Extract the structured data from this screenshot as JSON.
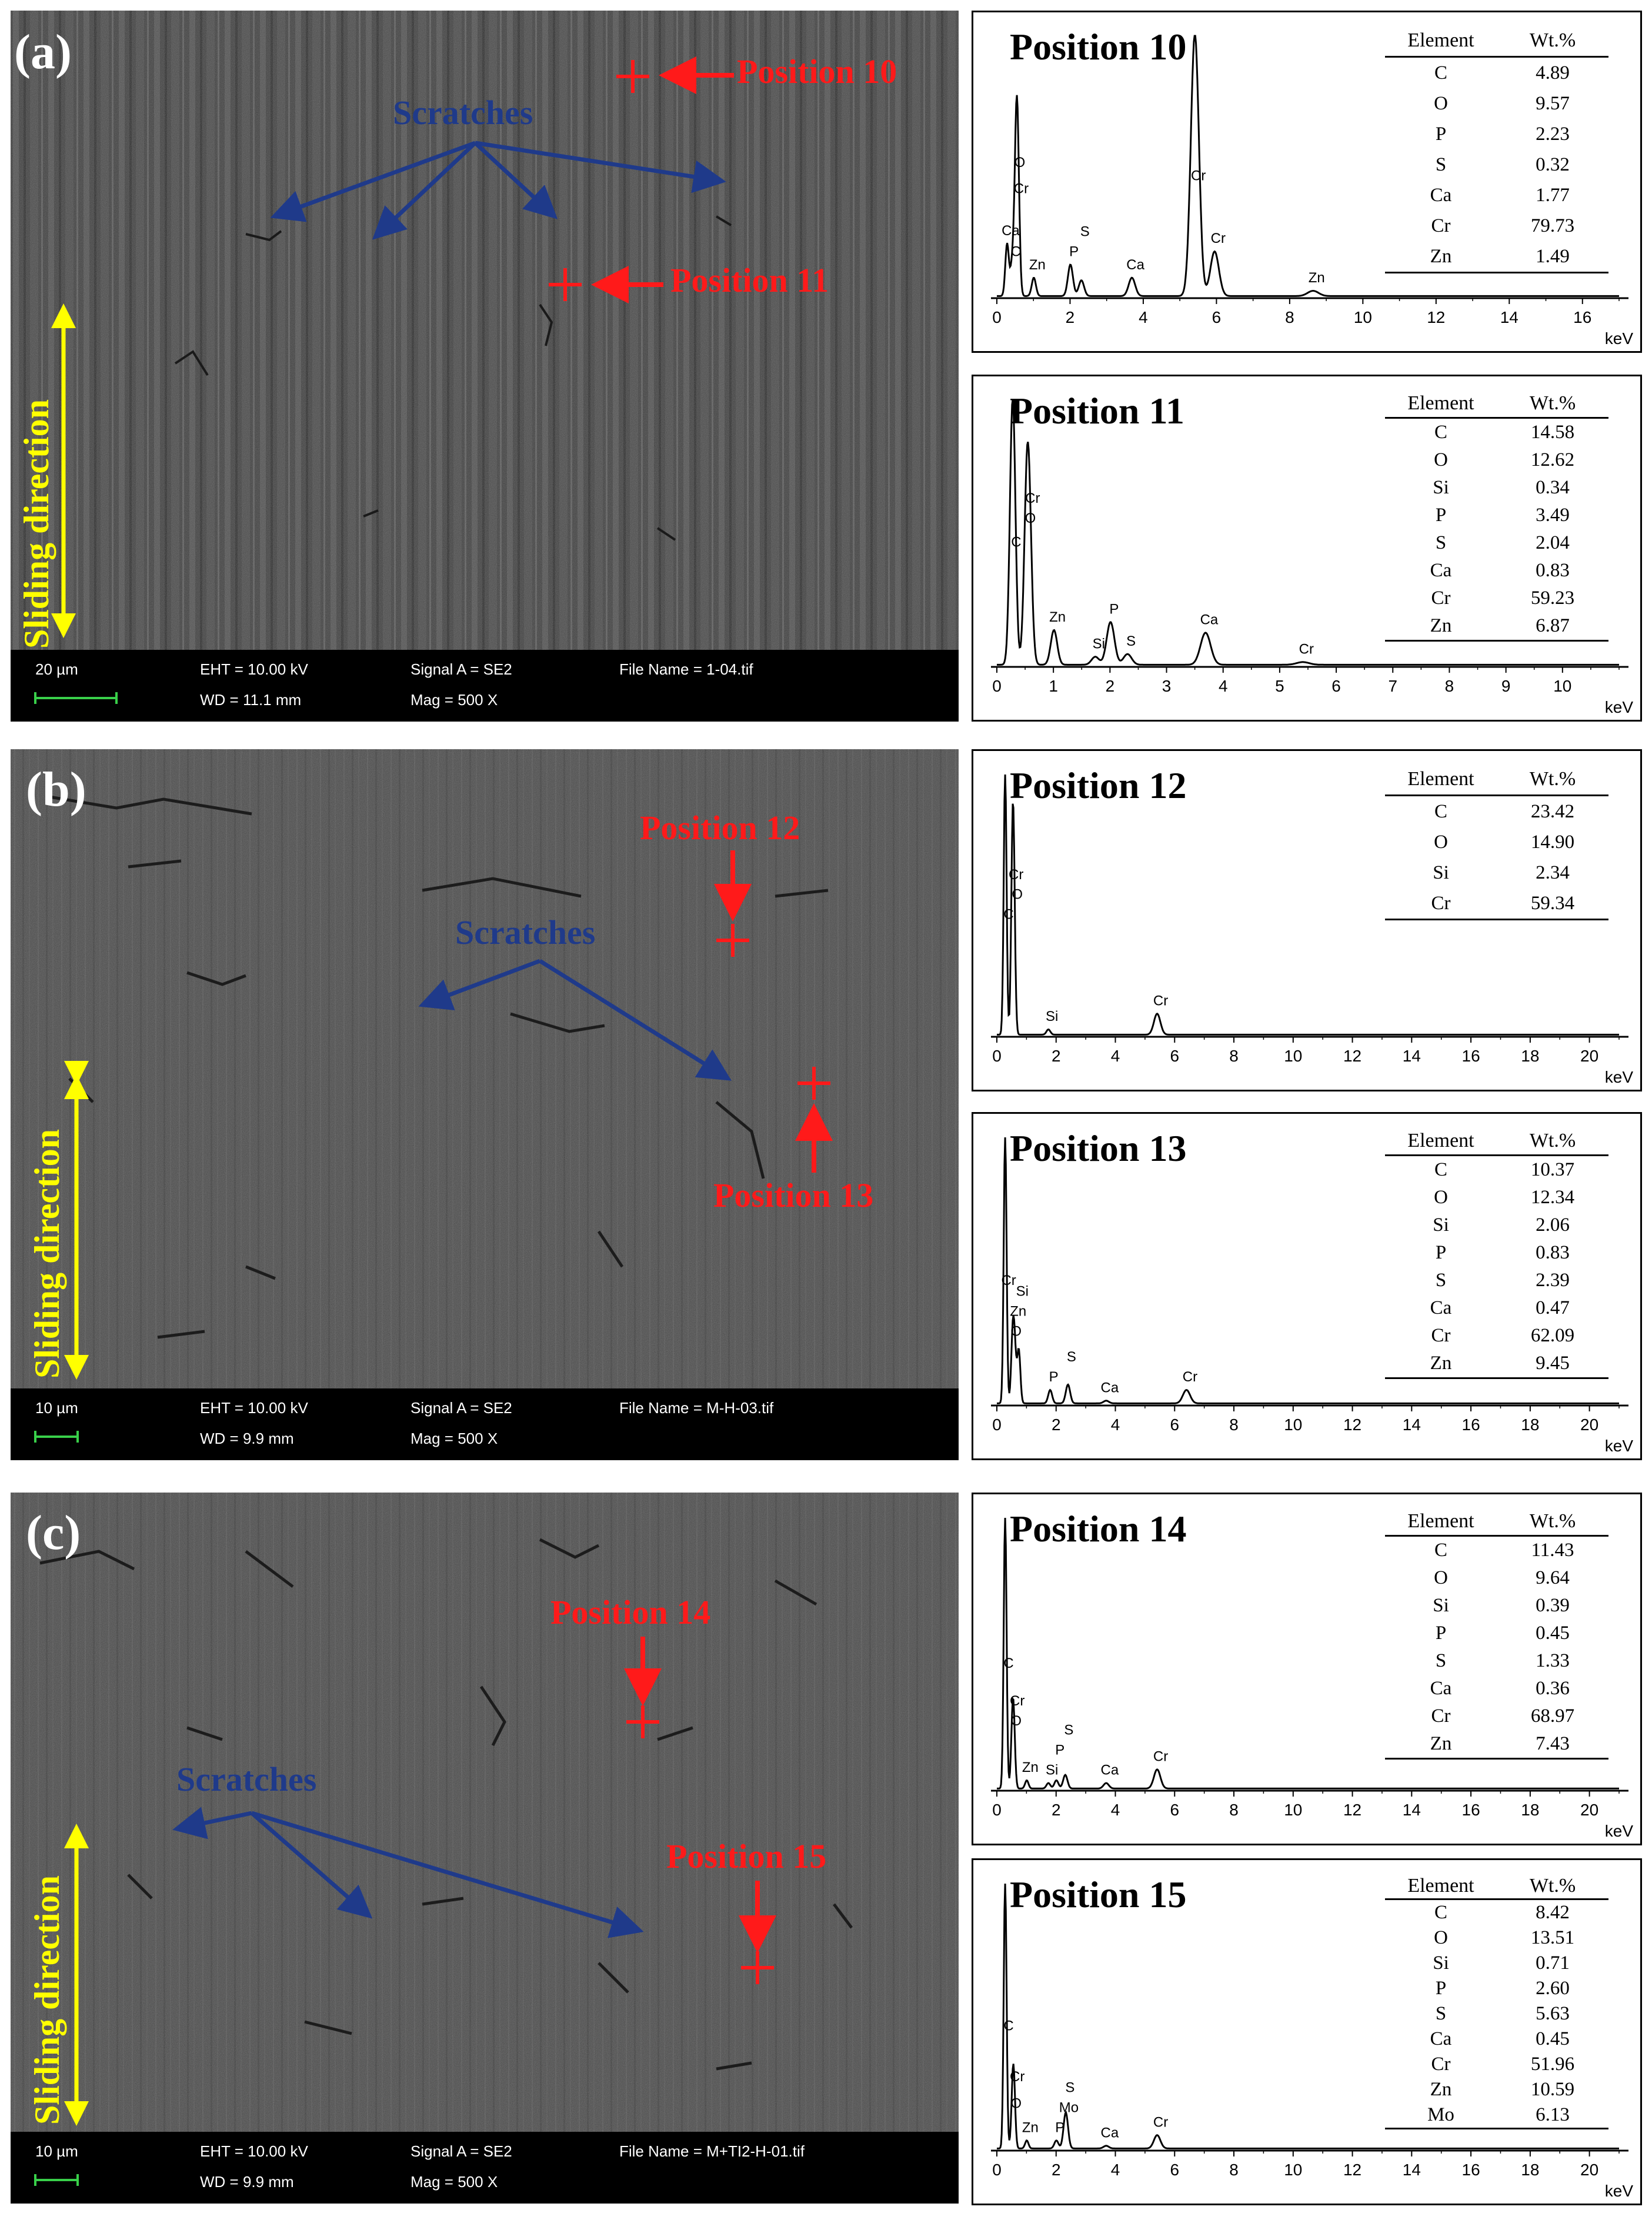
{
  "panels": [
    {
      "label": "(a)",
      "sem": {
        "scale_bar": "20 µm",
        "eht": "EHT = 10.00 kV",
        "wd": "WD = 11.1 mm",
        "signal": "Signal A = SE2",
        "mag": "Mag =    500 X",
        "file": "File Name = 1-04.tif",
        "scratches": "Scratches",
        "sliding": "Sliding direction",
        "positions": [
          "Position 10",
          "Position 11"
        ]
      }
    },
    {
      "label": "(b)",
      "sem": {
        "scale_bar": "10 µm",
        "eht": "EHT = 10.00 kV",
        "wd": "WD =  9.9 mm",
        "signal": "Signal A = SE2",
        "mag": "Mag =    500 X",
        "file": "File Name = M-H-03.tif",
        "scratches": "Scratches",
        "sliding": "Sliding direction",
        "positions": [
          "Position 12",
          "Position 13"
        ]
      }
    },
    {
      "label": "(c)",
      "sem": {
        "scale_bar": "10 µm",
        "eht": "EHT = 10.00 kV",
        "wd": "WD =  9.9 mm",
        "signal": "Signal A = SE2",
        "mag": "Mag =    500 X",
        "file": "File Name = M+TI2-H-01.tif",
        "scratches": "Scratches",
        "sliding": "Sliding direction",
        "positions": [
          "Position 14",
          "Position 15"
        ]
      }
    }
  ],
  "colors": {
    "marker_red": "#ff1a1a",
    "scratch_blue": "#1f3a8a",
    "sliding_yellow": "#ffff00",
    "scale_green": "#39d04a"
  },
  "table_headers": {
    "element": "Element",
    "wt": "Wt.%"
  },
  "unit": "keV",
  "chart_data": [
    {
      "type": "line",
      "title": "Position 10",
      "xlabel": "keV",
      "x_ticks": [
        0,
        2,
        4,
        6,
        8,
        10,
        12,
        14,
        16
      ],
      "xlim": [
        0,
        17
      ],
      "peaks": [
        {
          "x": 0.28,
          "h": 0.2,
          "label": "Ca"
        },
        {
          "x": 0.42,
          "h": 0.12,
          "label": "C"
        },
        {
          "x": 0.53,
          "h": 0.46,
          "label": "O"
        },
        {
          "x": 0.57,
          "h": 0.36,
          "label": "Cr"
        },
        {
          "x": 1.01,
          "h": 0.07,
          "label": "Zn"
        },
        {
          "x": 2.01,
          "h": 0.12,
          "label": "P"
        },
        {
          "x": 2.31,
          "h": 0.06,
          "label": "S"
        },
        {
          "x": 3.69,
          "h": 0.07,
          "label": "Ca"
        },
        {
          "x": 5.41,
          "h": 1.0,
          "label": "Cr"
        },
        {
          "x": 5.95,
          "h": 0.17,
          "label": "Cr"
        },
        {
          "x": 8.64,
          "h": 0.02,
          "label": "Zn"
        }
      ],
      "table": [
        [
          "C",
          "4.89"
        ],
        [
          "O",
          "9.57"
        ],
        [
          "P",
          "2.23"
        ],
        [
          "S",
          "0.32"
        ],
        [
          "Ca",
          "1.77"
        ],
        [
          "Cr",
          "79.73"
        ],
        [
          "Zn",
          "1.49"
        ]
      ]
    },
    {
      "type": "line",
      "title": "Position 11",
      "xlabel": "keV",
      "x_ticks": [
        0,
        1,
        2,
        3,
        4,
        5,
        6,
        7,
        8,
        9,
        10
      ],
      "xlim": [
        0,
        11
      ],
      "peaks": [
        {
          "x": 0.28,
          "h": 1.0,
          "label": "C"
        },
        {
          "x": 0.53,
          "h": 0.5,
          "label": "O"
        },
        {
          "x": 0.57,
          "h": 0.4,
          "label": "Cr"
        },
        {
          "x": 1.01,
          "h": 0.13,
          "label": "Zn"
        },
        {
          "x": 1.74,
          "h": 0.03,
          "label": "Si"
        },
        {
          "x": 2.01,
          "h": 0.16,
          "label": "P"
        },
        {
          "x": 2.31,
          "h": 0.04,
          "label": "S"
        },
        {
          "x": 3.69,
          "h": 0.12,
          "label": "Ca"
        },
        {
          "x": 5.41,
          "h": 0.01,
          "label": "Cr"
        }
      ],
      "table": [
        [
          "C",
          "14.58"
        ],
        [
          "O",
          "12.62"
        ],
        [
          "Si",
          "0.34"
        ],
        [
          "P",
          "3.49"
        ],
        [
          "S",
          "2.04"
        ],
        [
          "Ca",
          "0.83"
        ],
        [
          "Cr",
          "59.23"
        ],
        [
          "Zn",
          "6.87"
        ]
      ]
    },
    {
      "type": "line",
      "title": "Position 12",
      "xlabel": "keV",
      "x_ticks": [
        0,
        2,
        4,
        6,
        8,
        10,
        12,
        14,
        16,
        18,
        20
      ],
      "xlim": [
        0,
        21
      ],
      "peaks": [
        {
          "x": 0.28,
          "h": 1.0,
          "label": "C"
        },
        {
          "x": 0.53,
          "h": 0.56,
          "label": "Cr"
        },
        {
          "x": 0.57,
          "h": 0.4,
          "label": "O"
        },
        {
          "x": 1.74,
          "h": 0.02,
          "label": "Si"
        },
        {
          "x": 5.41,
          "h": 0.08,
          "label": "Cr"
        }
      ],
      "table": [
        [
          "C",
          "23.42"
        ],
        [
          "O",
          "14.90"
        ],
        [
          "Si",
          "2.34"
        ],
        [
          "Cr",
          "59.34"
        ]
      ]
    },
    {
      "type": "line",
      "title": "Position 13",
      "xlabel": "keV",
      "x_ticks": [
        0,
        2,
        4,
        6,
        8,
        10,
        12,
        14,
        16,
        18,
        20
      ],
      "xlim": [
        0,
        21
      ],
      "peaks": [
        {
          "x": 0.28,
          "h": 1.0,
          "label": "Cr"
        },
        {
          "x": 0.53,
          "h": 0.22,
          "label": "O"
        },
        {
          "x": 0.6,
          "h": 0.19,
          "label": "Zn"
        },
        {
          "x": 0.74,
          "h": 0.2,
          "label": "Si"
        },
        {
          "x": 1.8,
          "h": 0.05,
          "label": "P"
        },
        {
          "x": 2.4,
          "h": 0.07,
          "label": "S"
        },
        {
          "x": 3.69,
          "h": 0.01,
          "label": "Ca"
        },
        {
          "x": 6.4,
          "h": 0.05,
          "label": "Cr"
        }
      ],
      "table": [
        [
          "C",
          "10.37"
        ],
        [
          "O",
          "12.34"
        ],
        [
          "Si",
          "2.06"
        ],
        [
          "P",
          "0.83"
        ],
        [
          "S",
          "2.39"
        ],
        [
          "Ca",
          "0.47"
        ],
        [
          "Cr",
          "62.09"
        ],
        [
          "Zn",
          "9.45"
        ]
      ]
    },
    {
      "type": "line",
      "title": "Position 14",
      "xlabel": "keV",
      "x_ticks": [
        0,
        2,
        4,
        6,
        8,
        10,
        12,
        14,
        16,
        18,
        20
      ],
      "xlim": [
        0,
        21
      ],
      "peaks": [
        {
          "x": 0.28,
          "h": 1.0,
          "label": "C"
        },
        {
          "x": 0.53,
          "h": 0.2,
          "label": "O"
        },
        {
          "x": 0.57,
          "h": 0.16,
          "label": "Cr"
        },
        {
          "x": 1.01,
          "h": 0.03,
          "label": "Zn"
        },
        {
          "x": 1.74,
          "h": 0.02,
          "label": "Si"
        },
        {
          "x": 2.01,
          "h": 0.03,
          "label": "P"
        },
        {
          "x": 2.31,
          "h": 0.05,
          "label": "S"
        },
        {
          "x": 3.69,
          "h": 0.02,
          "label": "Ca"
        },
        {
          "x": 5.41,
          "h": 0.07,
          "label": "Cr"
        }
      ],
      "table": [
        [
          "C",
          "11.43"
        ],
        [
          "O",
          "9.64"
        ],
        [
          "Si",
          "0.39"
        ],
        [
          "P",
          "0.45"
        ],
        [
          "S",
          "1.33"
        ],
        [
          "Ca",
          "0.36"
        ],
        [
          "Cr",
          "68.97"
        ],
        [
          "Zn",
          "7.43"
        ]
      ]
    },
    {
      "type": "line",
      "title": "Position 15",
      "xlabel": "keV",
      "x_ticks": [
        0,
        2,
        4,
        6,
        8,
        10,
        12,
        14,
        16,
        18,
        20
      ],
      "xlim": [
        0,
        21
      ],
      "peaks": [
        {
          "x": 0.28,
          "h": 1.0,
          "label": "C"
        },
        {
          "x": 0.57,
          "h": 0.22,
          "label": "Cr"
        },
        {
          "x": 0.53,
          "h": 0.12,
          "label": "O"
        },
        {
          "x": 1.01,
          "h": 0.03,
          "label": "Zn"
        },
        {
          "x": 2.01,
          "h": 0.03,
          "label": "P"
        },
        {
          "x": 2.31,
          "h": 0.08,
          "label": "Mo"
        },
        {
          "x": 2.35,
          "h": 0.06,
          "label": "S"
        },
        {
          "x": 3.69,
          "h": 0.01,
          "label": "Ca"
        },
        {
          "x": 5.41,
          "h": 0.05,
          "label": "Cr"
        }
      ],
      "table": [
        [
          "C",
          "8.42"
        ],
        [
          "O",
          "13.51"
        ],
        [
          "Si",
          "0.71"
        ],
        [
          "P",
          "2.60"
        ],
        [
          "S",
          "5.63"
        ],
        [
          "Ca",
          "0.45"
        ],
        [
          "Cr",
          "51.96"
        ],
        [
          "Zn",
          "10.59"
        ],
        [
          "Mo",
          "6.13"
        ]
      ]
    }
  ]
}
